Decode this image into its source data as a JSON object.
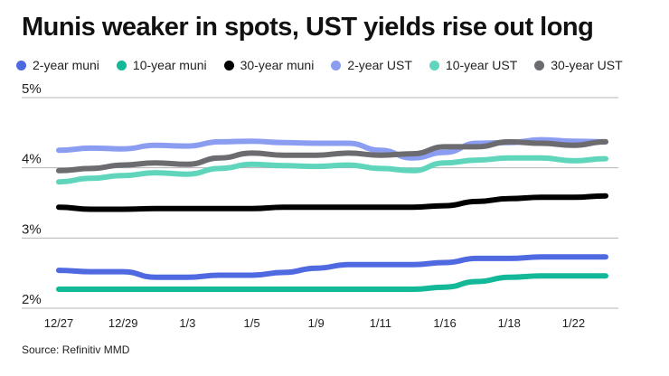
{
  "chart_data": {
    "type": "line",
    "title": "Munis weaker in spots, UST yields rise out long",
    "xlabel": "",
    "ylabel": "",
    "x": [
      "12/27",
      "12/28",
      "12/29",
      "12/30",
      "1/3",
      "1/4",
      "1/5",
      "1/6",
      "1/9",
      "1/10",
      "1/11",
      "1/12",
      "1/16",
      "1/17",
      "1/18",
      "1/19",
      "1/22",
      "1/23"
    ],
    "x_tick_labels": [
      "12/27",
      "12/29",
      "1/3",
      "1/5",
      "1/9",
      "1/11",
      "1/16",
      "1/18",
      "1/22"
    ],
    "y_ticks": [
      2,
      3,
      4,
      5
    ],
    "y_tick_labels": [
      "2%",
      "3%",
      "4%",
      "5%"
    ],
    "ylim": [
      2,
      5
    ],
    "grid": true,
    "legend_position": "top",
    "series": [
      {
        "name": "2-year muni",
        "color": "#4f69e0",
        "values": [
          2.54,
          2.52,
          2.52,
          2.44,
          2.44,
          2.47,
          2.47,
          2.51,
          2.57,
          2.62,
          2.62,
          2.62,
          2.65,
          2.71,
          2.71,
          2.73,
          2.73,
          2.73
        ]
      },
      {
        "name": "10-year muni",
        "color": "#12b897",
        "values": [
          2.27,
          2.27,
          2.27,
          2.27,
          2.27,
          2.27,
          2.27,
          2.27,
          2.27,
          2.27,
          2.27,
          2.27,
          2.3,
          2.38,
          2.44,
          2.46,
          2.46,
          2.46
        ]
      },
      {
        "name": "30-year muni",
        "color": "#000000",
        "values": [
          3.44,
          3.41,
          3.41,
          3.42,
          3.42,
          3.42,
          3.42,
          3.44,
          3.44,
          3.44,
          3.44,
          3.44,
          3.46,
          3.52,
          3.56,
          3.58,
          3.58,
          3.6
        ]
      },
      {
        "name": "2-year UST",
        "color": "#8b9df0",
        "values": [
          4.25,
          4.28,
          4.27,
          4.32,
          4.31,
          4.37,
          4.38,
          4.36,
          4.35,
          4.35,
          4.25,
          4.14,
          4.22,
          4.35,
          4.36,
          4.4,
          4.38,
          4.37
        ]
      },
      {
        "name": "10-year UST",
        "color": "#5fd6bc",
        "values": [
          3.8,
          3.85,
          3.89,
          3.93,
          3.91,
          3.99,
          4.05,
          4.03,
          4.02,
          4.04,
          3.99,
          3.96,
          4.07,
          4.11,
          4.14,
          4.14,
          4.1,
          4.13
        ]
      },
      {
        "name": "30-year UST",
        "color": "#6b6b70",
        "values": [
          3.96,
          3.99,
          4.04,
          4.07,
          4.05,
          4.14,
          4.21,
          4.18,
          4.18,
          4.21,
          4.18,
          4.2,
          4.3,
          4.3,
          4.37,
          4.35,
          4.32,
          4.37
        ]
      }
    ]
  },
  "source": "Source: Refinitiv MMD"
}
